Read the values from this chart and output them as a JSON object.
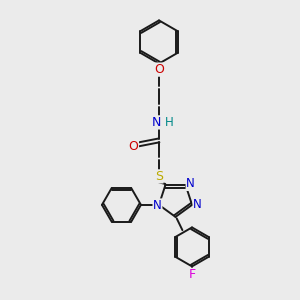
{
  "bg_color": "#ebebeb",
  "bond_color": "#1a1a1a",
  "atom_colors": {
    "N": "#0000cc",
    "O": "#cc0000",
    "S": "#bbaa00",
    "F": "#dd00dd",
    "H": "#008888",
    "C": "#1a1a1a"
  },
  "figsize": [
    3.0,
    3.0
  ],
  "dpi": 100,
  "lw": 1.4
}
